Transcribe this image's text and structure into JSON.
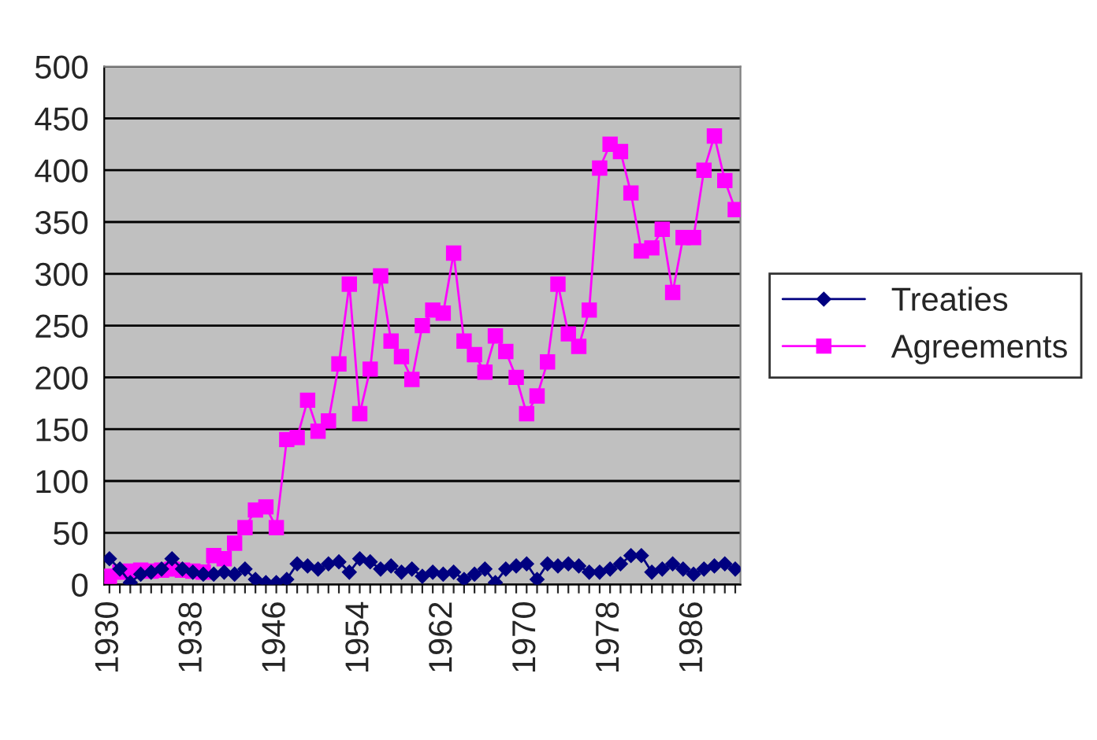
{
  "chart_data": {
    "type": "line",
    "categories": [
      "1930",
      null,
      null,
      null,
      null,
      null,
      null,
      null,
      "1938",
      null,
      null,
      null,
      null,
      null,
      null,
      null,
      "1946",
      null,
      null,
      null,
      null,
      null,
      null,
      null,
      "1954",
      null,
      null,
      null,
      null,
      null,
      null,
      null,
      "1962",
      null,
      null,
      null,
      null,
      null,
      null,
      null,
      "1970",
      null,
      null,
      null,
      null,
      null,
      null,
      null,
      "1978",
      null,
      null,
      null,
      null,
      null,
      null,
      null,
      "1986",
      null,
      null,
      null,
      null
    ],
    "series": [
      {
        "name": "Treaties",
        "color": "#000080",
        "marker": "diamond",
        "values": [
          25,
          15,
          2,
          10,
          12,
          15,
          25,
          15,
          12,
          10,
          10,
          12,
          10,
          15,
          5,
          2,
          2,
          5,
          20,
          18,
          15,
          20,
          22,
          12,
          25,
          22,
          15,
          18,
          12,
          15,
          8,
          12,
          10,
          12,
          5,
          10,
          15,
          2,
          15,
          18,
          20,
          5,
          20,
          18,
          20,
          18,
          12,
          12,
          15,
          20,
          28,
          28,
          12,
          15,
          20,
          15,
          10,
          15,
          18,
          20,
          15
        ]
      },
      {
        "name": "Agreements",
        "color": "#ff00ff",
        "marker": "square",
        "values": [
          8,
          12,
          13,
          14,
          13,
          14,
          15,
          14,
          13,
          12,
          28,
          25,
          40,
          55,
          72,
          75,
          55,
          140,
          142,
          178,
          148,
          158,
          213,
          290,
          165,
          208,
          298,
          235,
          220,
          198,
          250,
          265,
          262,
          320,
          235,
          222,
          205,
          240,
          225,
          200,
          165,
          182,
          215,
          290,
          242,
          230,
          265,
          402,
          425,
          418,
          378,
          322,
          325,
          343,
          282,
          335,
          335,
          400,
          433,
          390,
          362
        ]
      }
    ],
    "ylim": [
      0,
      500
    ],
    "yticks": [
      0,
      50,
      100,
      150,
      200,
      250,
      300,
      350,
      400,
      450,
      500
    ],
    "grid": "y",
    "legend": "right",
    "line_style": "solid"
  }
}
